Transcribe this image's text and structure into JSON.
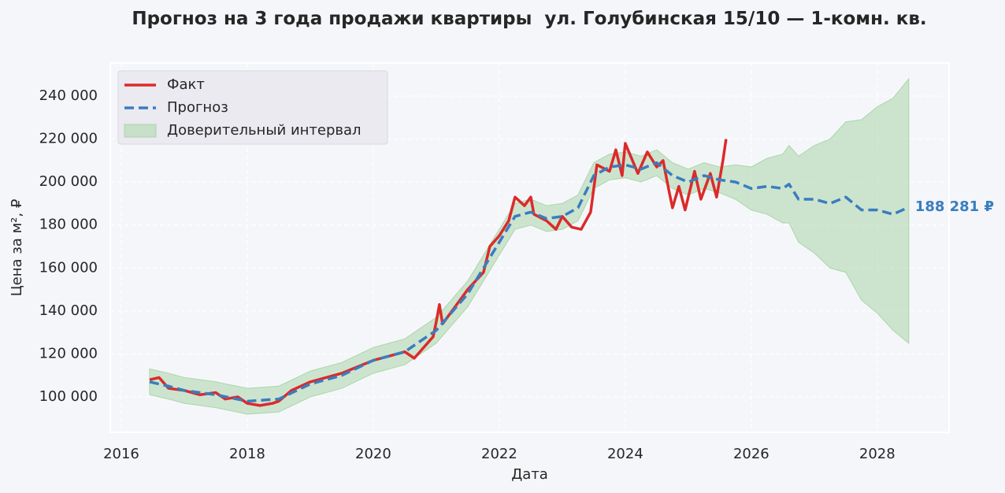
{
  "chart_data": {
    "type": "line",
    "title": "Прогноз на 3 года продажи квартиры  ул. Голубинская 15/10 — 1-комн. кв.",
    "x_label": "Дата",
    "y_label": "Цена за м², ₽",
    "xlim": [
      2015.825,
      2029.14
    ],
    "ylim": [
      83500,
      255400
    ],
    "xticks": [
      2016,
      2018,
      2020,
      2022,
      2024,
      2026,
      2028
    ],
    "yticks": [
      {
        "value": 100000,
        "label": "100 000"
      },
      {
        "value": 120000,
        "label": "120 000"
      },
      {
        "value": 140000,
        "label": "140 000"
      },
      {
        "value": 160000,
        "label": "160 000"
      },
      {
        "value": 180000,
        "label": "180 000"
      },
      {
        "value": 200000,
        "label": "200 000"
      },
      {
        "value": 220000,
        "label": "220 000"
      },
      {
        "value": 240000,
        "label": "240 000"
      }
    ],
    "grid": true,
    "legend": "upper left",
    "series": [
      {
        "name": "Факт",
        "color": "#dc2a2a",
        "style": "solid",
        "x": [
          2016.45,
          2016.6,
          2016.75,
          2017.0,
          2017.25,
          2017.5,
          2017.65,
          2017.85,
          2018.0,
          2018.2,
          2018.4,
          2018.5,
          2018.7,
          2019.0,
          2019.25,
          2019.5,
          2019.75,
          2020.0,
          2020.25,
          2020.5,
          2020.65,
          2020.8,
          2020.95,
          2021.0,
          2021.05,
          2021.1,
          2021.3,
          2021.5,
          2021.75,
          2021.85,
          2022.0,
          2022.15,
          2022.25,
          2022.4,
          2022.5,
          2022.55,
          2022.75,
          2022.9,
          2023.0,
          2023.15,
          2023.3,
          2023.45,
          2023.55,
          2023.75,
          2023.85,
          2023.95,
          2024.0,
          2024.2,
          2024.35,
          2024.5,
          2024.6,
          2024.7,
          2024.75,
          2024.85,
          2024.95,
          2025.1,
          2025.2,
          2025.35,
          2025.45,
          2025.55,
          2025.6
        ],
        "values": [
          108000,
          109000,
          104000,
          103000,
          101000,
          102000,
          99000,
          100000,
          97000,
          96000,
          97000,
          98000,
          103000,
          107000,
          109000,
          111000,
          114000,
          117000,
          119000,
          121000,
          118000,
          123000,
          128000,
          135000,
          143000,
          134000,
          142000,
          150000,
          158000,
          170000,
          175000,
          182000,
          193000,
          189000,
          193000,
          185000,
          182000,
          178000,
          184000,
          179000,
          178000,
          186000,
          208000,
          205000,
          215000,
          203000,
          218000,
          204000,
          214000,
          207000,
          210000,
          195000,
          188000,
          198000,
          187000,
          205000,
          192000,
          204000,
          193000,
          210000,
          220000
        ]
      },
      {
        "name": "Прогноз",
        "color": "#3a7dbf",
        "style": "dashed",
        "x": [
          2016.45,
          2016.75,
          2017.0,
          2017.5,
          2018.0,
          2018.5,
          2019.0,
          2019.5,
          2020.0,
          2020.5,
          2021.0,
          2021.5,
          2021.75,
          2022.0,
          2022.25,
          2022.5,
          2022.75,
          2023.0,
          2023.25,
          2023.5,
          2023.75,
          2024.0,
          2024.25,
          2024.5,
          2024.75,
          2025.0,
          2025.25,
          2025.5,
          2025.75,
          2026.0,
          2026.25,
          2026.5,
          2026.6,
          2026.75,
          2027.0,
          2027.25,
          2027.5,
          2027.75,
          2028.0,
          2028.25,
          2028.5
        ],
        "values": [
          107000,
          105000,
          103000,
          101000,
          98000,
          99000,
          106000,
          110000,
          117000,
          121000,
          131000,
          148000,
          160000,
          172000,
          184000,
          186000,
          183000,
          184000,
          188000,
          203000,
          207000,
          208000,
          206000,
          209000,
          203000,
          200000,
          203000,
          201000,
          200000,
          197000,
          198000,
          197000,
          199000,
          192000,
          192000,
          190000,
          193000,
          187000,
          187000,
          185000,
          188281
        ],
        "band_name": "Доверительный интервал",
        "band_color": "#a9d6a9",
        "lower": [
          101000,
          99000,
          97000,
          95000,
          92000,
          93000,
          100000,
          104000,
          111000,
          115000,
          125000,
          142000,
          154000,
          166000,
          178000,
          180000,
          177000,
          178000,
          182000,
          197000,
          201000,
          202000,
          200000,
          203000,
          197000,
          194000,
          197000,
          195000,
          192000,
          187000,
          185000,
          181000,
          181000,
          172000,
          167000,
          160000,
          158000,
          145000,
          139000,
          131000,
          125000
        ],
        "upper": [
          113000,
          111000,
          109000,
          107000,
          104000,
          105000,
          112000,
          116000,
          123000,
          127000,
          137000,
          154000,
          166000,
          178000,
          190000,
          192000,
          189000,
          190000,
          194000,
          209000,
          213000,
          214000,
          212000,
          215000,
          209000,
          206000,
          209000,
          207000,
          208000,
          207000,
          211000,
          213000,
          217000,
          212000,
          217000,
          220000,
          228000,
          229000,
          235000,
          239000,
          248000
        ]
      }
    ],
    "annotation": "188 281 ₽"
  }
}
